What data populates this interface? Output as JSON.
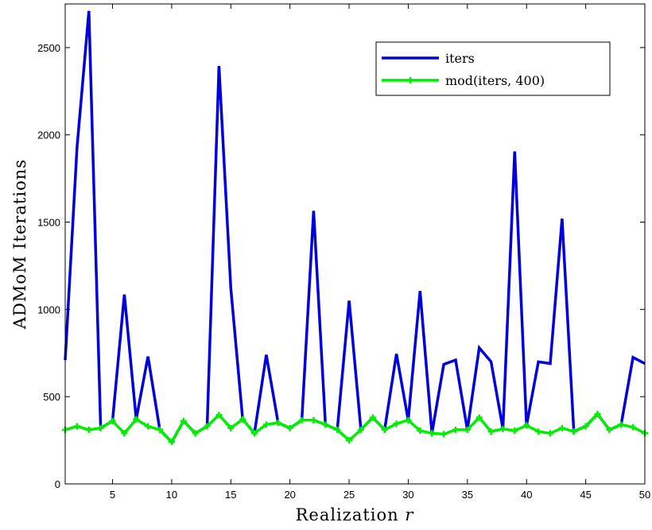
{
  "chart_data": {
    "type": "line",
    "title": "",
    "xlabel": "Realization r",
    "xlabel_text": "Realization ",
    "xlabel_var": "r",
    "ylabel": "ADMoM Iterations",
    "xlim": [
      1,
      50
    ],
    "ylim": [
      0,
      2750
    ],
    "xticks": [
      5,
      10,
      15,
      20,
      25,
      30,
      35,
      40,
      45,
      50
    ],
    "yticks": [
      0,
      500,
      1000,
      1500,
      2000,
      2500
    ],
    "grid": false,
    "legend_position": "top-right",
    "x": [
      1,
      2,
      3,
      4,
      5,
      6,
      7,
      8,
      9,
      10,
      11,
      12,
      13,
      14,
      15,
      16,
      17,
      18,
      19,
      20,
      21,
      22,
      23,
      24,
      25,
      26,
      27,
      28,
      29,
      30,
      31,
      32,
      33,
      34,
      35,
      36,
      37,
      38,
      39,
      40,
      41,
      42,
      43,
      44,
      45,
      46,
      47,
      48,
      49,
      50
    ],
    "series": [
      {
        "name": "iters",
        "color": "#0000dd",
        "marker": "none",
        "values": [
          710,
          1930,
          2710,
          320,
          360,
          1085,
          370,
          730,
          310,
          240,
          360,
          290,
          330,
          2395,
          1120,
          370,
          290,
          740,
          350,
          320,
          365,
          1565,
          340,
          310,
          1050,
          310,
          380,
          310,
          745,
          365,
          1105,
          290,
          685,
          710,
          310,
          780,
          700,
          315,
          1905,
          335,
          700,
          690,
          1520,
          300,
          330,
          400,
          310,
          340,
          725,
          690
        ]
      },
      {
        "name": "mod(iters, 400)",
        "color": "#00ee00",
        "marker": "+",
        "values": [
          310,
          330,
          310,
          320,
          360,
          290,
          370,
          330,
          310,
          240,
          360,
          290,
          330,
          395,
          320,
          370,
          290,
          340,
          350,
          320,
          365,
          365,
          340,
          310,
          250,
          310,
          380,
          310,
          345,
          365,
          305,
          290,
          285,
          310,
          310,
          380,
          300,
          315,
          305,
          335,
          300,
          290,
          320,
          300,
          330,
          400,
          310,
          340,
          325,
          290
        ]
      }
    ]
  }
}
